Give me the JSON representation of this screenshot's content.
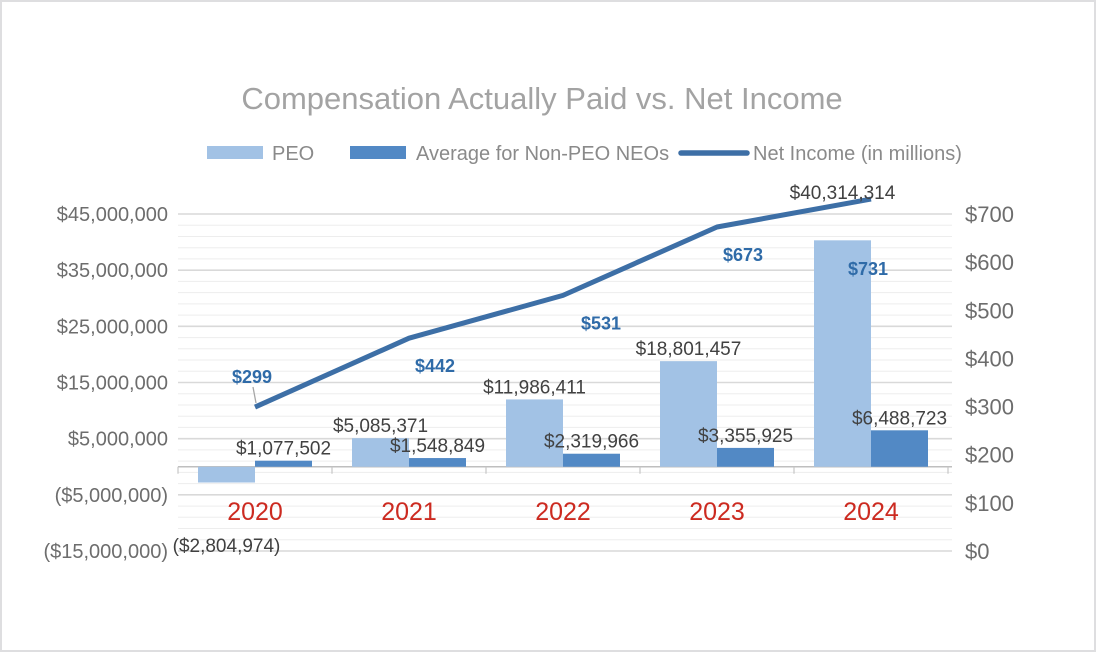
{
  "title": "Compensation Actually Paid vs. Net Income",
  "legend": [
    {
      "label": "PEO",
      "swatch": "bar",
      "color": "#A2C2E5"
    },
    {
      "label": "Average for Non-PEO NEOs",
      "swatch": "bar",
      "color": "#5289C5"
    },
    {
      "label": "Net Income (in millions)",
      "swatch": "line",
      "color": "#3D6FA6"
    }
  ],
  "chart_data": {
    "type": "combo_bar_line",
    "title": "Compensation Actually Paid vs. Net Income",
    "categories": [
      "2020",
      "2021",
      "2022",
      "2023",
      "2024"
    ],
    "series": [
      {
        "name": "PEO",
        "type": "bar",
        "axis": "left",
        "values": [
          -2804974,
          5085371,
          11986411,
          18801457,
          40314314
        ],
        "data_labels": [
          "($2,804,974)",
          "$5,085,371",
          "$11,986,411",
          "$18,801,457",
          "$40,314,314"
        ]
      },
      {
        "name": "Average for Non-PEO NEOs",
        "type": "bar",
        "axis": "left",
        "values": [
          1077502,
          1548849,
          2319966,
          3355925,
          6488723
        ],
        "data_labels": [
          "$1,077,502",
          "$1,548,849",
          "$2,319,966",
          "$3,355,925",
          "$6,488,723"
        ]
      },
      {
        "name": "Net Income (in millions)",
        "type": "line",
        "axis": "right",
        "values": [
          299,
          442,
          531,
          673,
          731
        ],
        "data_labels": [
          "$299",
          "$442",
          "$531",
          "$673",
          "$731"
        ]
      }
    ],
    "left_axis": {
      "min": -15000000,
      "max": 45000000,
      "major_unit": 10000000,
      "minor_unit": 2000000,
      "tick_labels": [
        "$45,000,000",
        "$35,000,000",
        "$25,000,000",
        "$15,000,000",
        "$5,000,000",
        "($5,000,000)",
        "($15,000,000)"
      ]
    },
    "right_axis": {
      "min": 0,
      "max": 700,
      "major_unit": 100,
      "tick_labels": [
        "$700",
        "$600",
        "$500",
        "$400",
        "$300",
        "$200",
        "$100",
        "$0"
      ]
    },
    "grid": "horizontal major + minor",
    "legend_position": "top"
  },
  "colors": {
    "peo_bar": "#A2C2E5",
    "neo_bar": "#5289C5",
    "net_income_line": "#3D6FA6",
    "net_income_label": "#2F6BA8",
    "year_label": "#CC2A20",
    "title_text": "#A3A3A3",
    "legend_text": "#8A8A8A",
    "axis_text": "#6D6D6D",
    "data_label": "#414141",
    "gridline_minor": "#EDEDED",
    "gridline_major": "#D9D9D9",
    "axis_line": "#BFBFBF",
    "tick_mark": "#C6C6C6",
    "leader_line": "#A6A6A6"
  }
}
